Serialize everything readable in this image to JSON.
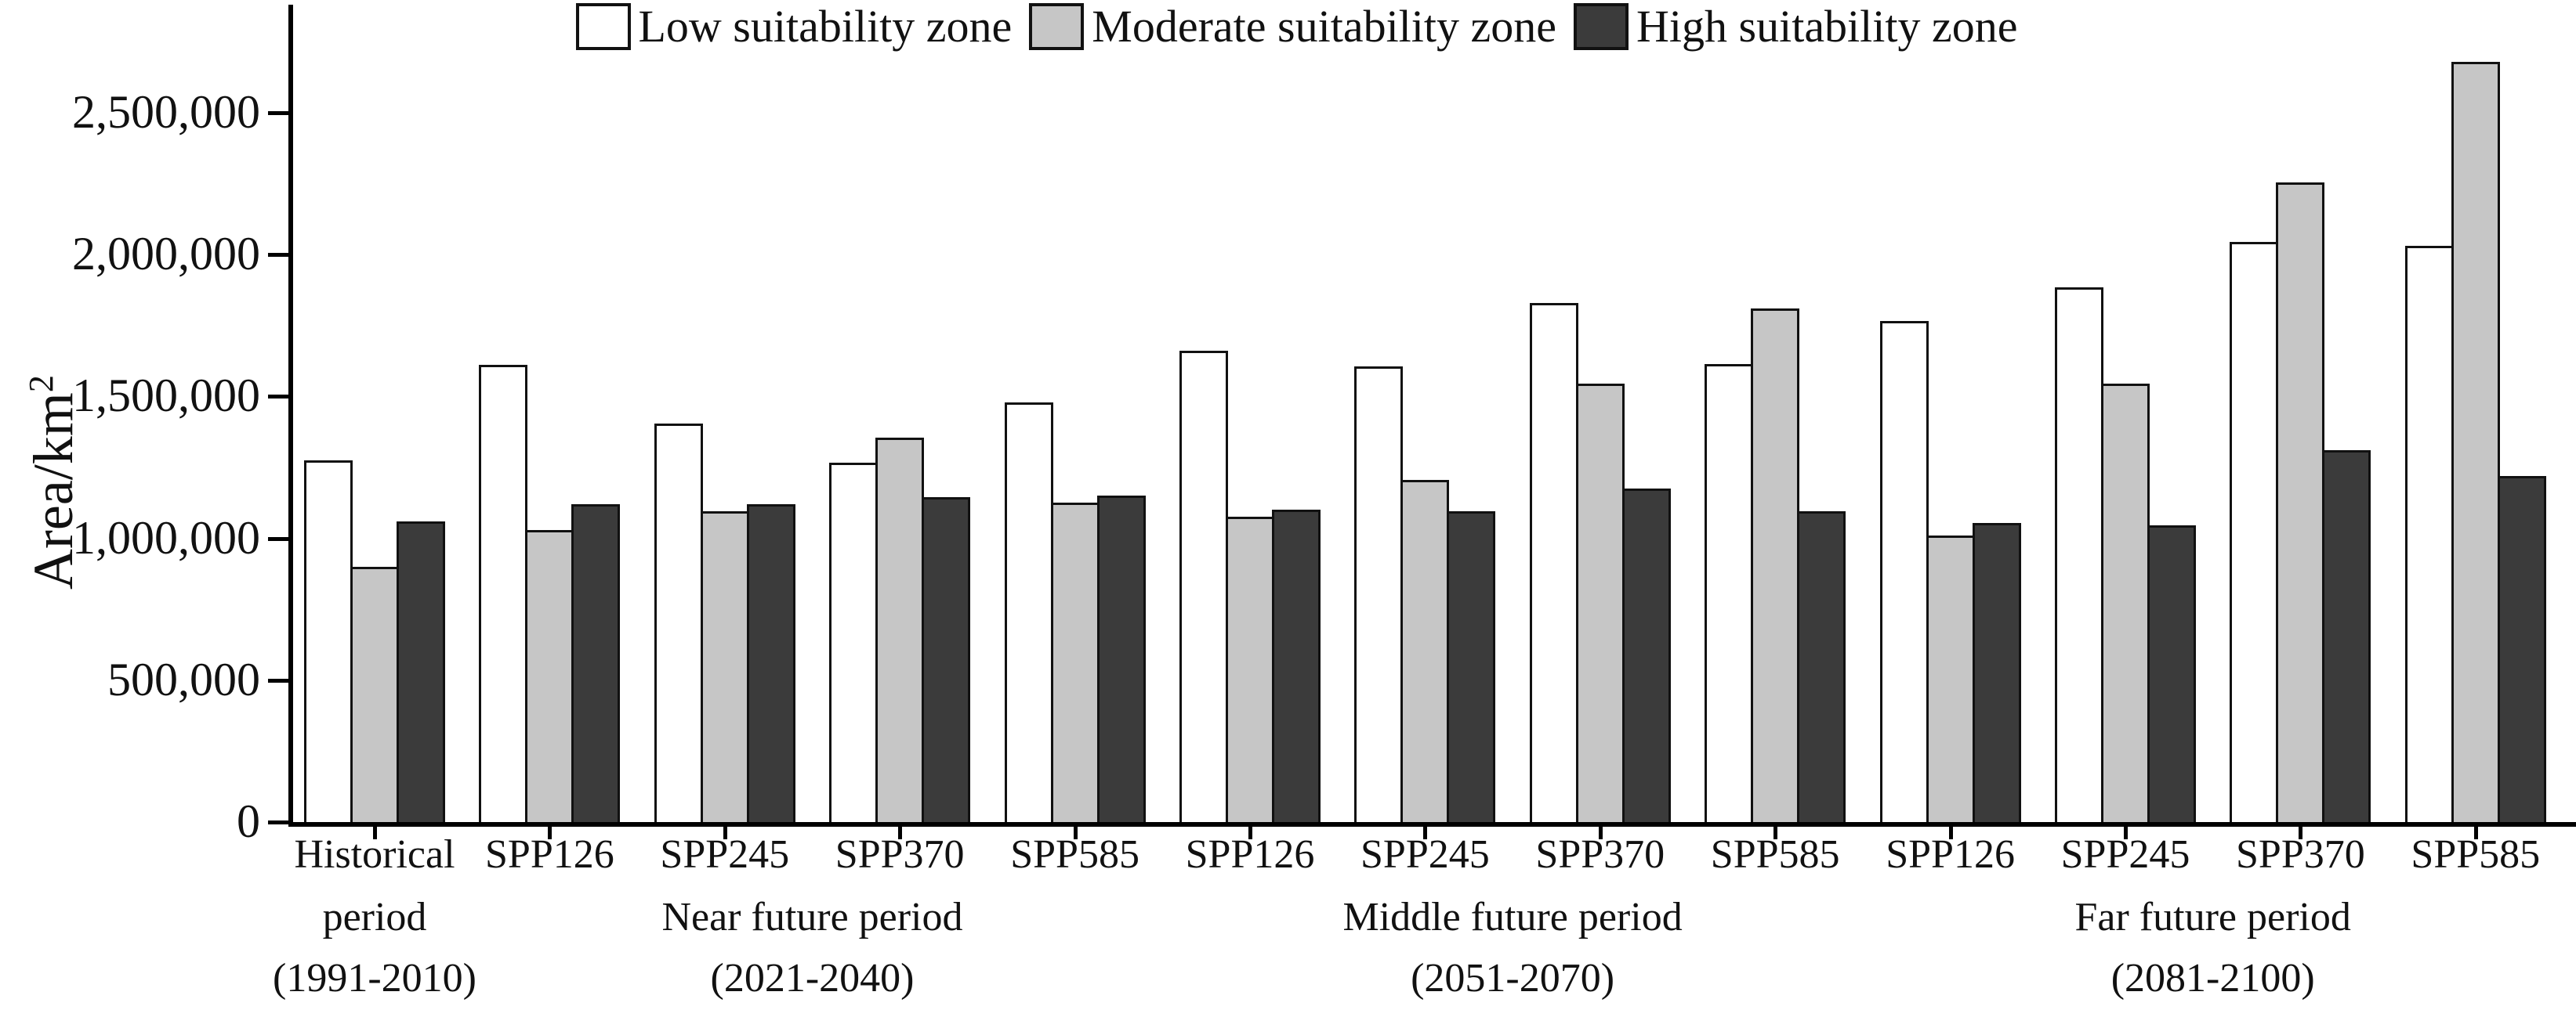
{
  "chart_data": {
    "type": "bar",
    "title": "",
    "ylabel_text": "Area/km",
    "ylabel_sup": "2",
    "ylim": [
      0,
      2880000
    ],
    "grid": false,
    "legend_position": "top",
    "series": [
      {
        "name": "Low suitability zone",
        "fill": "#ffffff",
        "border": "#111111"
      },
      {
        "name": "Moderate suitability zone",
        "fill": "#c6c6c6",
        "border": "#111111"
      },
      {
        "name": "High suitability zone",
        "fill": "#3b3b3b",
        "border": "#111111"
      }
    ],
    "yticks": [
      {
        "value": 0,
        "label": "0"
      },
      {
        "value": 500000,
        "label": "500,000"
      },
      {
        "value": 1000000,
        "label": "1,000,000"
      },
      {
        "value": 1500000,
        "label": "1,500,000"
      },
      {
        "value": 2000000,
        "label": "2,000,000"
      },
      {
        "value": 2500000,
        "label": "2,500,000"
      }
    ],
    "groups": [
      {
        "label": "Historical",
        "sublabels": [
          "period",
          "(1991-2010)"
        ],
        "values": [
          1275000,
          900000,
          1060000
        ]
      },
      {
        "label": "SPP126",
        "values": [
          1610000,
          1030000,
          1120000
        ]
      },
      {
        "label": "SPP245",
        "values": [
          1405000,
          1095000,
          1120000
        ]
      },
      {
        "label": "SPP370",
        "values": [
          1265000,
          1355000,
          1145000
        ]
      },
      {
        "label": "SPP585",
        "values": [
          1480000,
          1125000,
          1150000
        ]
      },
      {
        "label": "SPP126",
        "values": [
          1660000,
          1075000,
          1100000
        ]
      },
      {
        "label": "SPP245",
        "values": [
          1605000,
          1205000,
          1095000
        ]
      },
      {
        "label": "SPP370",
        "values": [
          1830000,
          1545000,
          1175000
        ]
      },
      {
        "label": "SPP585",
        "values": [
          1615000,
          1810000,
          1095000
        ]
      },
      {
        "label": "SPP126",
        "values": [
          1765000,
          1010000,
          1055000
        ]
      },
      {
        "label": "SPP245",
        "values": [
          1885000,
          1545000,
          1045000
        ]
      },
      {
        "label": "SPP370",
        "values": [
          2045000,
          2255000,
          1310000
        ]
      },
      {
        "label": "SPP585",
        "values": [
          2030000,
          2680000,
          1220000
        ]
      }
    ],
    "period_annotations": [
      {
        "label": "Near future period",
        "years": "(2021-2040)",
        "group_start": 1,
        "group_end": 4
      },
      {
        "label": "Middle future period",
        "years": "(2051-2070)",
        "group_start": 5,
        "group_end": 8
      },
      {
        "label": "Far future period",
        "years": "(2081-2100)",
        "group_start": 9,
        "group_end": 12
      }
    ]
  }
}
